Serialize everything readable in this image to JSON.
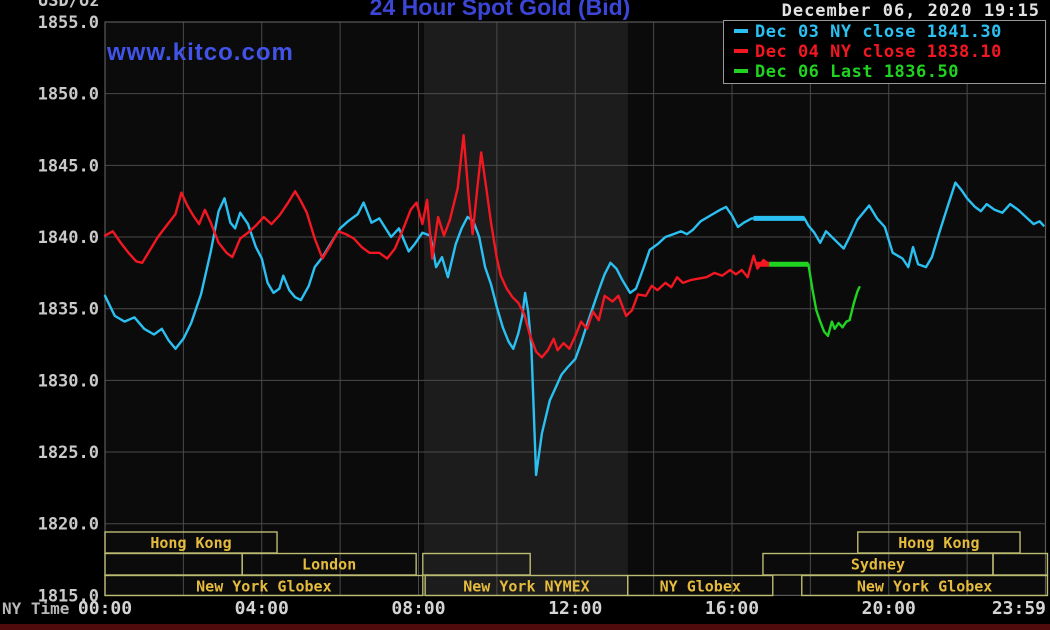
{
  "header": {
    "title": "24 Hour Spot Gold (Bid)",
    "datetime": "December 06, 2020 19:15",
    "watermark": "www.kitco.com",
    "y_unit": "USD/oz",
    "x_unit_label": "NY Time"
  },
  "legend": {
    "items": [
      {
        "text": "Dec 03 NY close 1841.30",
        "color": "#2bc0f2"
      },
      {
        "text": "Dec 04 NY close 1838.10",
        "color": "#f31722"
      },
      {
        "text": "Dec 06 Last 1836.50",
        "color": "#21d321"
      }
    ]
  },
  "colors": {
    "background": "#000000",
    "plot_background": "#0b0b0b",
    "nymex_band": "#1c1c1c",
    "gridline": "#4a4a4a",
    "border": "#5a5a5a",
    "session_box_border": "#bcbc72",
    "session_label": "#e5bb3e",
    "title_blue": "#3b45d6",
    "watermark_blue": "#4254e8",
    "axis_text": "#c9c9c9",
    "bottom_strip": "#4f0b0b",
    "cyan": "#2bc0f2",
    "red": "#f31722",
    "green": "#21d321"
  },
  "chart_data": {
    "type": "line",
    "title": "24 Hour Spot Gold (Bid)",
    "xlabel": "NY Time",
    "ylabel": "USD/oz",
    "x_range_hours": [
      0,
      24
    ],
    "ylim": [
      1815,
      1855
    ],
    "y_ticks": [
      "1855.0",
      "1850.0",
      "1845.0",
      "1840.0",
      "1835.0",
      "1830.0",
      "1825.0",
      "1820.0",
      "1815.0"
    ],
    "x_ticks": [
      {
        "label": "00:00",
        "hour": 0
      },
      {
        "label": "04:00",
        "hour": 4
      },
      {
        "label": "08:00",
        "hour": 8
      },
      {
        "label": "12:00",
        "hour": 12
      },
      {
        "label": "16:00",
        "hour": 16
      },
      {
        "label": "20:00",
        "hour": 20
      },
      {
        "label": "23:59",
        "hour": 23.983
      }
    ],
    "grid": {
      "x_step_hours": 2,
      "y_step": 5
    },
    "nymex_band_hours": [
      8.14,
      13.34
    ],
    "legend_position": "top-right",
    "series": [
      {
        "name": "Dec 03 NY close",
        "close_value": 1841.3,
        "color": "#2bc0f2",
        "points": [
          [
            0,
            1835.9
          ],
          [
            0.25,
            1834.5
          ],
          [
            0.5,
            1834.1
          ],
          [
            0.75,
            1834.4
          ],
          [
            1,
            1833.6
          ],
          [
            1.25,
            1833.2
          ],
          [
            1.45,
            1833.6
          ],
          [
            1.62,
            1832.8
          ],
          [
            1.8,
            1832.2
          ],
          [
            2,
            1832.9
          ],
          [
            2.2,
            1834
          ],
          [
            2.45,
            1836
          ],
          [
            2.7,
            1839
          ],
          [
            2.9,
            1841.8
          ],
          [
            3.05,
            1842.7
          ],
          [
            3.2,
            1841
          ],
          [
            3.32,
            1840.6
          ],
          [
            3.45,
            1841.7
          ],
          [
            3.65,
            1840.9
          ],
          [
            3.85,
            1839.3
          ],
          [
            4,
            1838.5
          ],
          [
            4.15,
            1836.8
          ],
          [
            4.3,
            1836.1
          ],
          [
            4.45,
            1836.4
          ],
          [
            4.55,
            1837.3
          ],
          [
            4.7,
            1836.3
          ],
          [
            4.85,
            1835.8
          ],
          [
            5,
            1835.6
          ],
          [
            5.2,
            1836.6
          ],
          [
            5.35,
            1837.9
          ],
          [
            5.55,
            1838.6
          ],
          [
            5.75,
            1839.5
          ],
          [
            6,
            1840.6
          ],
          [
            6.2,
            1841.1
          ],
          [
            6.45,
            1841.6
          ],
          [
            6.6,
            1842.4
          ],
          [
            6.8,
            1841
          ],
          [
            7,
            1841.3
          ],
          [
            7.3,
            1840
          ],
          [
            7.5,
            1840.6
          ],
          [
            7.75,
            1839
          ],
          [
            7.9,
            1839.5
          ],
          [
            8.1,
            1840.3
          ],
          [
            8.3,
            1840.1
          ],
          [
            8.45,
            1837.9
          ],
          [
            8.6,
            1838.6
          ],
          [
            8.75,
            1837.2
          ],
          [
            8.95,
            1839.5
          ],
          [
            9.1,
            1840.6
          ],
          [
            9.25,
            1841.4
          ],
          [
            9.4,
            1841.1
          ],
          [
            9.55,
            1840
          ],
          [
            9.7,
            1837.9
          ],
          [
            9.85,
            1836.7
          ],
          [
            10,
            1835.1
          ],
          [
            10.15,
            1833.7
          ],
          [
            10.3,
            1832.7
          ],
          [
            10.42,
            1832.2
          ],
          [
            10.55,
            1833.3
          ],
          [
            10.65,
            1834.5
          ],
          [
            10.72,
            1836.1
          ],
          [
            10.8,
            1834.8
          ],
          [
            10.88,
            1832.3
          ],
          [
            11,
            1823.4
          ],
          [
            11.15,
            1826.3
          ],
          [
            11.35,
            1828.6
          ],
          [
            11.5,
            1829.5
          ],
          [
            11.65,
            1830.4
          ],
          [
            11.8,
            1830.9
          ],
          [
            12,
            1831.5
          ],
          [
            12.15,
            1832.6
          ],
          [
            12.3,
            1833.9
          ],
          [
            12.45,
            1835.1
          ],
          [
            12.6,
            1836.3
          ],
          [
            12.75,
            1837.4
          ],
          [
            12.9,
            1838.2
          ],
          [
            13.05,
            1837.8
          ],
          [
            13.2,
            1837
          ],
          [
            13.4,
            1836.1
          ],
          [
            13.55,
            1836.4
          ],
          [
            13.75,
            1837.9
          ],
          [
            13.9,
            1839.1
          ],
          [
            14.1,
            1839.5
          ],
          [
            14.3,
            1840
          ],
          [
            14.5,
            1840.2
          ],
          [
            14.7,
            1840.4
          ],
          [
            14.85,
            1840.2
          ],
          [
            15,
            1840.5
          ],
          [
            15.2,
            1841.1
          ],
          [
            15.45,
            1841.5
          ],
          [
            15.7,
            1841.9
          ],
          [
            15.85,
            1842.1
          ],
          [
            16,
            1841.5
          ],
          [
            16.15,
            1840.7
          ],
          [
            16.3,
            1841
          ],
          [
            16.5,
            1841.3
          ],
          [
            17.85,
            1841.3
          ],
          [
            17.95,
            1840.8
          ],
          [
            18.1,
            1840.3
          ],
          [
            18.25,
            1839.6
          ],
          [
            18.4,
            1840.4
          ],
          [
            18.55,
            1840
          ],
          [
            18.7,
            1839.6
          ],
          [
            18.85,
            1839.2
          ],
          [
            19,
            1840
          ],
          [
            19.2,
            1841.2
          ],
          [
            19.5,
            1842.2
          ],
          [
            19.7,
            1841.3
          ],
          [
            19.9,
            1840.7
          ],
          [
            20.1,
            1838.9
          ],
          [
            20.35,
            1838.5
          ],
          [
            20.5,
            1837.9
          ],
          [
            20.62,
            1839.3
          ],
          [
            20.75,
            1838.1
          ],
          [
            20.95,
            1837.9
          ],
          [
            21.1,
            1838.6
          ],
          [
            21.3,
            1840.4
          ],
          [
            21.5,
            1842.1
          ],
          [
            21.7,
            1843.8
          ],
          [
            21.85,
            1843.3
          ],
          [
            22,
            1842.7
          ],
          [
            22.2,
            1842.1
          ],
          [
            22.35,
            1841.8
          ],
          [
            22.5,
            1842.3
          ],
          [
            22.7,
            1841.9
          ],
          [
            22.9,
            1841.7
          ],
          [
            23.1,
            1842.3
          ],
          [
            23.3,
            1841.9
          ],
          [
            23.5,
            1841.4
          ],
          [
            23.7,
            1840.9
          ],
          [
            23.85,
            1841.1
          ],
          [
            23.95,
            1840.8
          ]
        ]
      },
      {
        "name": "Dec 04 NY close",
        "close_value": 1838.1,
        "color": "#f31722",
        "points": [
          [
            0,
            1840.1
          ],
          [
            0.2,
            1840.4
          ],
          [
            0.4,
            1839.6
          ],
          [
            0.6,
            1838.9
          ],
          [
            0.8,
            1838.3
          ],
          [
            0.95,
            1838.2
          ],
          [
            1.15,
            1839.1
          ],
          [
            1.35,
            1840
          ],
          [
            1.6,
            1840.9
          ],
          [
            1.8,
            1841.6
          ],
          [
            1.95,
            1843.1
          ],
          [
            2.1,
            1842.2
          ],
          [
            2.25,
            1841.5
          ],
          [
            2.4,
            1840.9
          ],
          [
            2.55,
            1841.9
          ],
          [
            2.7,
            1841
          ],
          [
            2.9,
            1839.6
          ],
          [
            3.1,
            1838.9
          ],
          [
            3.25,
            1838.6
          ],
          [
            3.45,
            1839.9
          ],
          [
            3.65,
            1840.3
          ],
          [
            3.85,
            1840.8
          ],
          [
            4.05,
            1841.4
          ],
          [
            4.25,
            1840.9
          ],
          [
            4.45,
            1841.5
          ],
          [
            4.65,
            1842.3
          ],
          [
            4.85,
            1843.2
          ],
          [
            5,
            1842.5
          ],
          [
            5.15,
            1841.7
          ],
          [
            5.35,
            1839.9
          ],
          [
            5.55,
            1838.5
          ],
          [
            5.75,
            1839.4
          ],
          [
            5.95,
            1840.4
          ],
          [
            6.15,
            1840.2
          ],
          [
            6.35,
            1839.9
          ],
          [
            6.55,
            1839.3
          ],
          [
            6.75,
            1838.9
          ],
          [
            7,
            1838.9
          ],
          [
            7.2,
            1838.5
          ],
          [
            7.4,
            1839.2
          ],
          [
            7.6,
            1840.5
          ],
          [
            7.8,
            1841.9
          ],
          [
            7.95,
            1842.4
          ],
          [
            8.1,
            1840.9
          ],
          [
            8.22,
            1842.6
          ],
          [
            8.35,
            1838.5
          ],
          [
            8.5,
            1841.4
          ],
          [
            8.65,
            1840.1
          ],
          [
            8.8,
            1841.2
          ],
          [
            9,
            1843.4
          ],
          [
            9.15,
            1847.1
          ],
          [
            9.28,
            1842.8
          ],
          [
            9.38,
            1840.2
          ],
          [
            9.5,
            1843.4
          ],
          [
            9.6,
            1845.9
          ],
          [
            9.75,
            1843
          ],
          [
            9.85,
            1841
          ],
          [
            10,
            1838.5
          ],
          [
            10.1,
            1837.3
          ],
          [
            10.25,
            1836.4
          ],
          [
            10.4,
            1835.8
          ],
          [
            10.55,
            1835.4
          ],
          [
            10.7,
            1834.6
          ],
          [
            10.85,
            1833.1
          ],
          [
            11,
            1832
          ],
          [
            11.15,
            1831.6
          ],
          [
            11.3,
            1832.1
          ],
          [
            11.45,
            1832.9
          ],
          [
            11.55,
            1832.1
          ],
          [
            11.7,
            1832.6
          ],
          [
            11.85,
            1832.2
          ],
          [
            12,
            1833.1
          ],
          [
            12.15,
            1834.1
          ],
          [
            12.3,
            1833.6
          ],
          [
            12.45,
            1834.8
          ],
          [
            12.6,
            1834.2
          ],
          [
            12.75,
            1835.9
          ],
          [
            12.95,
            1835.5
          ],
          [
            13.1,
            1835.9
          ],
          [
            13.3,
            1834.5
          ],
          [
            13.45,
            1834.9
          ],
          [
            13.6,
            1836
          ],
          [
            13.8,
            1835.9
          ],
          [
            13.95,
            1836.6
          ],
          [
            14.1,
            1836.3
          ],
          [
            14.3,
            1836.8
          ],
          [
            14.45,
            1836.5
          ],
          [
            14.6,
            1837.2
          ],
          [
            14.75,
            1836.8
          ],
          [
            14.95,
            1837
          ],
          [
            15.15,
            1837.1
          ],
          [
            15.35,
            1837.2
          ],
          [
            15.55,
            1837.5
          ],
          [
            15.75,
            1837.3
          ],
          [
            15.95,
            1837.7
          ],
          [
            16.1,
            1837.4
          ],
          [
            16.25,
            1837.7
          ],
          [
            16.4,
            1837.2
          ],
          [
            16.55,
            1838.7
          ],
          [
            16.65,
            1837.8
          ],
          [
            16.8,
            1838.4
          ],
          [
            16.95,
            1838.1
          ]
        ]
      },
      {
        "name": "Dec 06 Last",
        "last_value": 1836.5,
        "color": "#21d321",
        "points": [
          [
            16.95,
            1838.1
          ],
          [
            17.95,
            1838.1
          ],
          [
            18.05,
            1836.4
          ],
          [
            18.15,
            1834.9
          ],
          [
            18.25,
            1834.1
          ],
          [
            18.35,
            1833.4
          ],
          [
            18.45,
            1833.1
          ],
          [
            18.55,
            1834.1
          ],
          [
            18.62,
            1833.6
          ],
          [
            18.72,
            1834
          ],
          [
            18.82,
            1833.7
          ],
          [
            18.92,
            1834.1
          ],
          [
            19,
            1834.2
          ],
          [
            19.1,
            1835.3
          ],
          [
            19.2,
            1836.2
          ],
          [
            19.25,
            1836.5
          ]
        ]
      }
    ],
    "close_segments": [
      {
        "series": "Dec 03 NY close",
        "start_hour": 16.55,
        "end_hour": 17.85,
        "value": 1841.3,
        "color": "#2bc0f2"
      },
      {
        "series": "Dec 04 NY close",
        "start_hour": 16.62,
        "end_hour": 16.95,
        "value": 1838.1,
        "color": "#f31722"
      },
      {
        "series": "Dec 06 Last",
        "start_hour": 16.95,
        "end_hour": 17.95,
        "value": 1838.1,
        "color": "#21d321"
      }
    ],
    "sessions": [
      {
        "row": 0,
        "start_hour": 0,
        "end_hour": 4.39,
        "label": "Hong Kong"
      },
      {
        "row": 0,
        "start_hour": 19.21,
        "end_hour": 23.35,
        "label": "Hong Kong"
      },
      {
        "row": 1,
        "start_hour": 0,
        "end_hour": 3.5,
        "label": ""
      },
      {
        "row": 1,
        "start_hour": 3.5,
        "end_hour": 7.94,
        "label": "London"
      },
      {
        "row": 1,
        "start_hour": 8.11,
        "end_hour": 10.85,
        "label": ""
      },
      {
        "row": 1,
        "start_hour": 16.79,
        "end_hour": 22.66,
        "label": "Sydney"
      },
      {
        "row": 1,
        "start_hour": 22.66,
        "end_hour": 24.05,
        "label": ""
      },
      {
        "row": 2,
        "start_hour": 0,
        "end_hour": 8.11,
        "label": "New York Globex"
      },
      {
        "row": 2,
        "start_hour": 8.17,
        "end_hour": 13.34,
        "label": "New York NYMEX"
      },
      {
        "row": 2,
        "start_hour": 13.34,
        "end_hour": 17.04,
        "label": "NY Globex"
      },
      {
        "row": 2,
        "start_hour": 17.78,
        "end_hour": 24.05,
        "label": "New York Globex"
      }
    ]
  }
}
